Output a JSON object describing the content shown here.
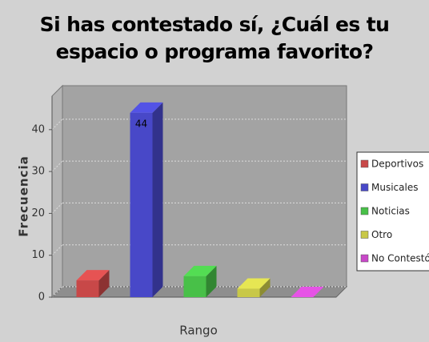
{
  "chart_data": {
    "type": "bar3d",
    "title": "Si has contestado sí, ¿Cuál es tu espacio o programa favorito?",
    "x_label": "Rango",
    "y_label": "Frecuencia",
    "series": [
      {
        "name": "Deportivos",
        "color": "#c84848",
        "values": [
          4
        ]
      },
      {
        "name": "Musicales",
        "color": "#4848c8",
        "values": [
          44
        ],
        "value_labels": [
          "44"
        ]
      },
      {
        "name": "Noticias",
        "color": "#48c048",
        "values": [
          5
        ]
      },
      {
        "name": "Otro",
        "color": "#c8c848",
        "values": [
          2
        ]
      },
      {
        "name": "No Contestó",
        "color": "#c848c8",
        "values": [
          0
        ]
      }
    ],
    "ylim": [
      0,
      48
    ],
    "yticks": [
      0,
      10,
      20,
      30,
      40
    ],
    "grid": true,
    "legend": "right"
  }
}
